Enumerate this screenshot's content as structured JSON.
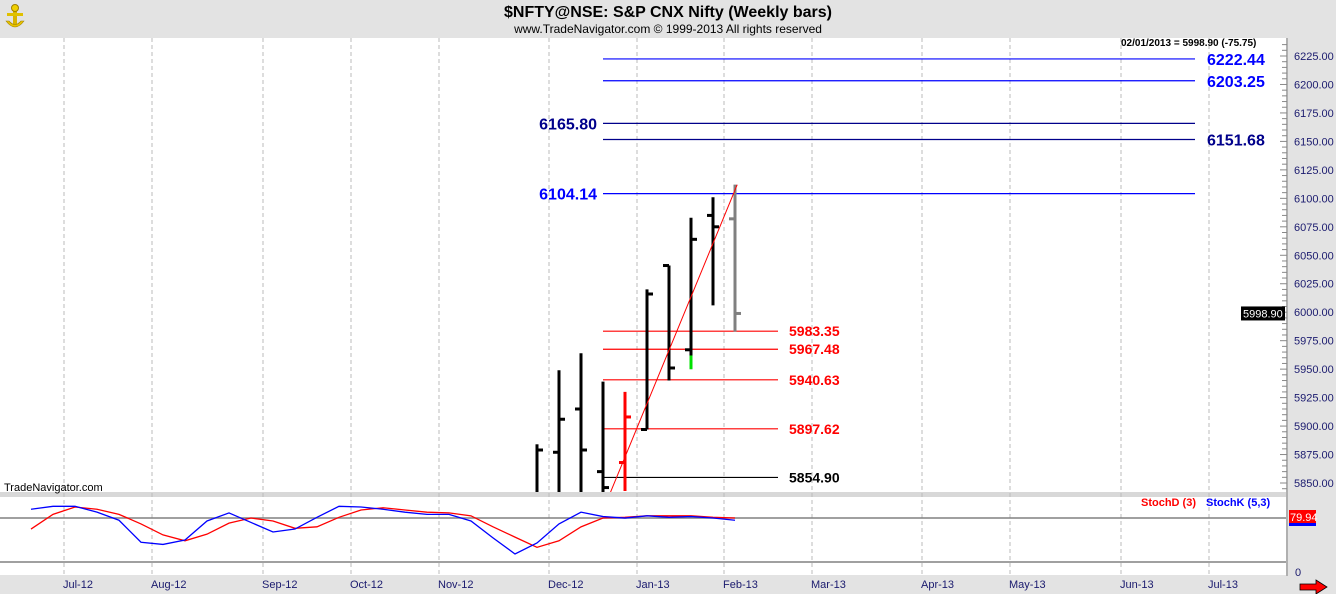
{
  "header": {
    "title": "$NFTY@NSE:  S&P CNX Nifty  (Weekly bars)",
    "subtitle": "www.TradeNavigator.com © 1999-2013 All rights reserved",
    "logo_icon": "anchor-logo-icon"
  },
  "readout": "02/01/2013 = 5998.90 (-75.75)",
  "watermark": "TradeNavigator.com",
  "colors": {
    "up": "#000000",
    "down": "#ff0000",
    "current": "#808080",
    "resistance": "#0000ff",
    "support": "#ff0000",
    "stochD": "#ff0000",
    "stochK": "#0000ff"
  },
  "chart_data": [
    {
      "type": "ohlc",
      "title": "$NFTY@NSE: S&P CNX Nifty (Weekly bars)",
      "ylim": [
        5840,
        6240
      ],
      "yticks": [
        "6225.00",
        "6200.00",
        "6175.00",
        "6150.00",
        "6125.00",
        "6100.00",
        "6075.00",
        "6050.00",
        "6025.00",
        "6000.00",
        "5975.00",
        "5950.00",
        "5925.00",
        "5900.00",
        "5875.00",
        "5850.00"
      ],
      "ytick_values": [
        6225,
        6200,
        6175,
        6150,
        6125,
        6100,
        6075,
        6050,
        6025,
        6000,
        5975,
        5950,
        5925,
        5900,
        5875,
        5850
      ],
      "last_price_label": "5998.90",
      "last_price": 5998.9,
      "xticks": [
        "Jul-12",
        "Aug-12",
        "Sep-12",
        "Oct-12",
        "Nov-12",
        "Dec-12",
        "Jan-13",
        "Feb-13",
        "Mar-13",
        "Apr-13",
        "May-13",
        "Jun-13",
        "Jul-13"
      ],
      "xtick_week_index": [
        1.5,
        5.5,
        10.5,
        14.5,
        18.5,
        23.5,
        27.5,
        31.5,
        35.5,
        40.5,
        44.5,
        49.5,
        53.5
      ],
      "bars": [
        {
          "week": 23,
          "open": null,
          "high": 5884,
          "low": 5840,
          "close": 5879,
          "color": "up"
        },
        {
          "week": 24,
          "open": 5877,
          "high": 5949,
          "low": 5840,
          "close": 5906,
          "color": "up"
        },
        {
          "week": 25,
          "open": 5915,
          "high": 5964,
          "low": 5840,
          "close": 5879,
          "color": "up"
        },
        {
          "week": 26,
          "open": 5860,
          "high": 5939,
          "low": 5840,
          "close": 5846,
          "color": "up"
        },
        {
          "week": 27,
          "open": 5868,
          "high": 5930,
          "low": 5843,
          "close": 5908,
          "color": "down"
        },
        {
          "week": 28,
          "open": 5897,
          "high": 6020,
          "low": 5897,
          "close": 6016,
          "color": "up"
        },
        {
          "week": 29,
          "open": 6041,
          "high": 6041,
          "low": 5940,
          "close": 5951,
          "color": "up"
        },
        {
          "week": 30,
          "open": 5967,
          "high": 6083,
          "low": 5950,
          "close": 6064,
          "color": "up",
          "green_tail_from": 5962
        },
        {
          "week": 31,
          "open": 6085,
          "high": 6101,
          "low": 6006,
          "close": 6075,
          "color": "up"
        },
        {
          "week": 32,
          "open": 6082,
          "high": 6112,
          "low": 5983,
          "close": 5998.9,
          "color": "current"
        }
      ],
      "trendline": {
        "from": {
          "week": 26.3,
          "value": 5840
        },
        "to": {
          "week": 32.1,
          "value": 6112
        }
      },
      "levels": [
        {
          "value": 6222.44,
          "label": "6222.44",
          "color": "#0000ff",
          "side": "right",
          "kind": "resistance"
        },
        {
          "value": 6203.25,
          "label": "6203.25",
          "color": "#0000ff",
          "side": "right",
          "kind": "resistance"
        },
        {
          "value": 6165.8,
          "label": "6165.80",
          "color": "#00008b",
          "side": "left",
          "kind": "resistance"
        },
        {
          "value": 6151.68,
          "label": "6151.68",
          "color": "#00008b",
          "side": "right",
          "kind": "resistance"
        },
        {
          "value": 6104.14,
          "label": "6104.14",
          "color": "#0000ff",
          "side": "left",
          "kind": "resistance"
        },
        {
          "value": 5983.35,
          "label": "5983.35",
          "color": "#ff0000",
          "side": "right",
          "kind": "support"
        },
        {
          "value": 5967.48,
          "label": "5967.48",
          "color": "#ff0000",
          "side": "right",
          "kind": "support"
        },
        {
          "value": 5940.63,
          "label": "5940.63",
          "color": "#ff0000",
          "side": "right",
          "kind": "support"
        },
        {
          "value": 5897.62,
          "label": "5897.62",
          "color": "#ff0000",
          "side": "right",
          "kind": "support"
        },
        {
          "value": 5854.9,
          "label": "5854.90",
          "color": "#000000",
          "side": "right",
          "kind": "support"
        }
      ]
    },
    {
      "type": "line",
      "title": "Stochastic",
      "ylim": [
        0,
        100
      ],
      "reference_lines": [
        80,
        20
      ],
      "bottom_label": "0",
      "last_value_label": "79.94",
      "start_week": 0,
      "series": [
        {
          "name": "StochD (3)",
          "color": "#ff0000",
          "values": [
            65,
            85,
            95,
            92,
            85,
            72,
            57,
            49,
            58,
            73,
            80,
            76,
            66,
            68,
            81,
            91,
            94,
            91,
            88,
            87,
            83,
            68,
            54,
            40,
            49,
            68,
            80,
            81,
            83,
            83,
            83,
            81,
            80
          ]
        },
        {
          "name": "StochK (5,3)",
          "color": "#0000ff",
          "values": [
            92,
            96,
            96,
            88,
            77,
            47,
            44,
            50,
            76,
            87,
            74,
            61,
            65,
            81,
            96,
            95,
            92,
            88,
            85,
            85,
            76,
            53,
            31,
            46,
            72,
            88,
            82,
            80,
            83,
            81,
            82,
            80,
            77
          ]
        }
      ]
    }
  ]
}
